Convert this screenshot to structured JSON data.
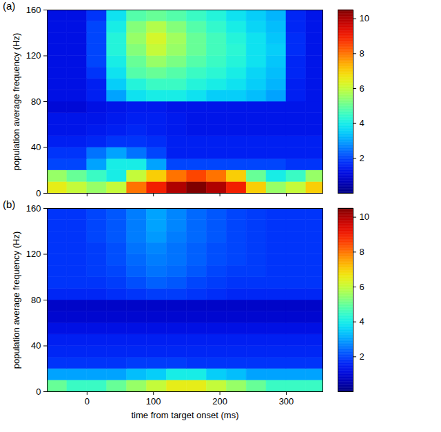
{
  "chart_data": [
    {
      "type": "heatmap",
      "title": "(a)",
      "ylabel": "population average frequency (Hz)",
      "tick_labels": "y",
      "xlim": [
        -60,
        355
      ],
      "xticks": [
        0,
        100,
        200,
        300
      ],
      "ylim": [
        0,
        160
      ],
      "yticks": [
        0,
        40,
        80,
        120,
        160
      ],
      "x": [
        -60,
        -30,
        0,
        30,
        60,
        90,
        120,
        150,
        180,
        210,
        240,
        270,
        300,
        330,
        360
      ],
      "y": [
        0,
        10,
        20,
        30,
        40,
        50,
        60,
        70,
        80,
        90,
        100,
        110,
        120,
        130,
        140,
        150,
        160
      ],
      "values": [
        [
          6.5,
          6,
          5.5,
          6,
          8,
          9,
          10,
          10.5,
          10,
          9,
          7,
          5.5,
          6,
          7
        ],
        [
          5.5,
          5,
          4.5,
          4,
          6,
          7,
          8,
          8.5,
          8,
          7,
          5,
          4,
          4.5,
          5.5
        ],
        [
          2,
          2,
          3,
          4,
          4,
          3,
          2,
          2,
          2,
          2,
          2,
          2,
          1.8,
          1.8
        ],
        [
          1.8,
          1.8,
          2.5,
          3,
          2.5,
          2,
          1.5,
          1.5,
          1.5,
          1.5,
          1.5,
          1.5,
          1.5,
          1.5
        ],
        [
          1.5,
          1.5,
          1.6,
          1.8,
          1.8,
          1.7,
          1.5,
          1.5,
          1.5,
          1.5,
          1.5,
          1.5,
          1.5,
          1.5
        ],
        [
          1.3,
          1.3,
          1.4,
          1.5,
          1.6,
          1.5,
          1.4,
          1.3,
          1.3,
          1.3,
          1.3,
          1.3,
          1.3,
          1.3
        ],
        [
          1.3,
          1.3,
          1.3,
          1.4,
          1.5,
          1.5,
          1.4,
          1.3,
          1.3,
          1.3,
          1.3,
          1.3,
          1.3,
          1.3
        ],
        [
          1.0,
          1.0,
          1.2,
          1.3,
          1.4,
          1.4,
          1.3,
          1.3,
          1.3,
          1.3,
          1.3,
          1.3,
          1.3,
          1.3
        ],
        [
          1.2,
          1.2,
          1.5,
          3,
          3.8,
          4,
          4,
          3.8,
          3.5,
          3.5,
          3.3,
          3,
          1.5,
          1.3
        ],
        [
          1.2,
          1.2,
          1.5,
          3.5,
          4.2,
          4.5,
          4.5,
          4.2,
          4,
          3.8,
          3.5,
          3.2,
          1.5,
          1.3
        ],
        [
          1.2,
          1.2,
          1.8,
          3.8,
          4.8,
          5,
          4.8,
          4.5,
          4.3,
          4,
          3.6,
          3.3,
          1.6,
          1.3
        ],
        [
          1.2,
          1.2,
          2,
          4,
          5,
          5.5,
          5.2,
          4.8,
          4.5,
          4.2,
          3.8,
          3.4,
          1.6,
          1.3
        ],
        [
          1.2,
          1.2,
          2,
          4.2,
          5.3,
          6,
          5.5,
          5,
          4.6,
          4.3,
          3.8,
          3.5,
          1.7,
          1.3
        ],
        [
          1.2,
          1.2,
          2,
          4.2,
          5.5,
          6.2,
          5.6,
          5,
          4.6,
          4.2,
          3.8,
          3.4,
          1.7,
          1.3
        ],
        [
          1.2,
          1.2,
          2,
          4,
          5.3,
          5.8,
          5.3,
          4.8,
          4.4,
          4,
          3.6,
          3.3,
          1.6,
          1.3
        ],
        [
          1.2,
          1.2,
          1.8,
          3.8,
          4.8,
          5,
          4.8,
          4.5,
          4.2,
          3.8,
          3.5,
          3.2,
          1.6,
          1.3
        ]
      ],
      "colorbar": {
        "range": [
          0,
          10.5
        ],
        "ticks": [
          2,
          4,
          6,
          8,
          10
        ]
      }
    },
    {
      "type": "heatmap",
      "title": "(b)",
      "ylabel": "population average frequency (Hz)",
      "xlabel": "time from target onset (ms)",
      "xlim": [
        -60,
        355
      ],
      "xticks": [
        0,
        100,
        200,
        300
      ],
      "ylim": [
        0,
        160
      ],
      "yticks": [
        0,
        40,
        80,
        120,
        160
      ],
      "x": [
        -60,
        -30,
        0,
        30,
        60,
        90,
        120,
        150,
        180,
        210,
        240,
        270,
        300,
        330,
        360
      ],
      "y": [
        0,
        10,
        20,
        30,
        40,
        50,
        60,
        70,
        80,
        90,
        100,
        110,
        120,
        130,
        140,
        150,
        160
      ],
      "values": [
        [
          5,
          4.5,
          4.5,
          5,
          5.5,
          6,
          6.5,
          6.5,
          6,
          5.5,
          5,
          4.5,
          4.5,
          4.5
        ],
        [
          3,
          3,
          3,
          3,
          3.3,
          3.5,
          4,
          4,
          3.5,
          3.3,
          3,
          3,
          3,
          3
        ],
        [
          1.8,
          1.8,
          1.8,
          1.8,
          1.9,
          1.9,
          1.9,
          1.8,
          1.8,
          1.8,
          1.8,
          1.8,
          1.8,
          1.8
        ],
        [
          1.6,
          1.6,
          1.6,
          1.6,
          1.6,
          1.6,
          1.6,
          1.6,
          1.6,
          1.6,
          1.6,
          1.6,
          1.6,
          1.6
        ],
        [
          1.5,
          1.5,
          1.5,
          1.5,
          1.5,
          1.5,
          1.5,
          1.5,
          1.5,
          1.5,
          1.5,
          1.5,
          1.5,
          1.5
        ],
        [
          1.2,
          1.2,
          1.2,
          1.2,
          1.2,
          1.2,
          1.2,
          1.2,
          1.2,
          1.2,
          1.2,
          1.2,
          1.2,
          1.2
        ],
        [
          0.9,
          0.9,
          0.9,
          0.9,
          0.9,
          0.9,
          0.9,
          0.9,
          0.9,
          0.9,
          0.9,
          0.9,
          0.9,
          0.9
        ],
        [
          0.8,
          0.8,
          0.8,
          0.8,
          0.8,
          0.8,
          0.8,
          0.8,
          0.8,
          0.8,
          0.8,
          0.8,
          0.8,
          0.8
        ],
        [
          1.6,
          1.6,
          1.6,
          1.7,
          1.8,
          1.9,
          1.9,
          1.8,
          1.7,
          1.6,
          1.6,
          1.6,
          1.6,
          1.6
        ],
        [
          1.8,
          1.8,
          1.8,
          1.9,
          2.1,
          2.3,
          2.2,
          2,
          1.9,
          1.8,
          1.8,
          1.8,
          1.8,
          1.8
        ],
        [
          1.8,
          1.8,
          1.9,
          2,
          2.3,
          2.5,
          2.4,
          2.2,
          2,
          1.9,
          1.9,
          1.8,
          1.8,
          1.8
        ],
        [
          1.8,
          1.8,
          1.9,
          2.1,
          2.4,
          2.6,
          2.5,
          2.3,
          2.1,
          2,
          1.9,
          1.8,
          1.8,
          1.8
        ],
        [
          1.8,
          1.8,
          1.9,
          2.1,
          2.5,
          2.7,
          2.5,
          2.3,
          2.1,
          2,
          1.9,
          1.8,
          1.8,
          1.8
        ],
        [
          1.8,
          1.8,
          2,
          2.2,
          2.6,
          2.9,
          2.6,
          2.4,
          2.2,
          2,
          1.9,
          1.8,
          1.8,
          1.8
        ],
        [
          1.8,
          1.8,
          2,
          2.2,
          2.6,
          3,
          2.7,
          2.4,
          2.2,
          2,
          1.9,
          1.8,
          1.8,
          1.8
        ],
        [
          1.8,
          1.8,
          2,
          2.2,
          2.6,
          3,
          2.7,
          2.4,
          2.2,
          2,
          1.9,
          1.8,
          1.8,
          1.8
        ]
      ],
      "colorbar": {
        "range": [
          0,
          10.5
        ],
        "ticks": [
          2,
          4,
          6,
          8,
          10
        ]
      }
    }
  ]
}
